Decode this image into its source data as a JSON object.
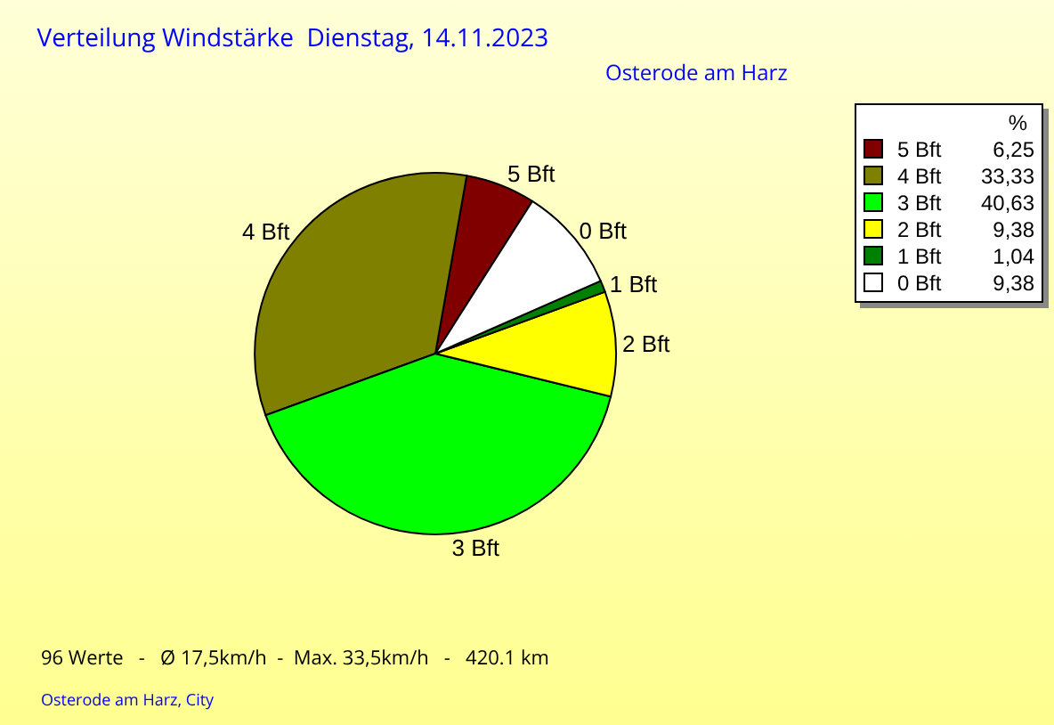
{
  "chart_data": {
    "type": "pie",
    "title": "Verteilung Windstärke  Dienstag, 14.11.2023",
    "subtitle": "Osterode am Harz",
    "categories": [
      "5 Bft",
      "4 Bft",
      "3 Bft",
      "2 Bft",
      "1 Bft",
      "0 Bft"
    ],
    "values": [
      6.25,
      33.33,
      40.63,
      9.38,
      1.04,
      9.38
    ],
    "value_labels": [
      "6,25",
      "33,33",
      "40,63",
      "9,38",
      "1,04",
      "9,38"
    ],
    "colors": [
      "#800000",
      "#808000",
      "#00ff00",
      "#ffff00",
      "#008000",
      "#ffffff"
    ],
    "legend": "top right",
    "legend_title": "%",
    "annotations": [
      "96 Werte   -   Ø 17,5km/h  -  Max. 33,5km/h   -   420.1 km",
      "Osterode am Harz, City"
    ]
  }
}
